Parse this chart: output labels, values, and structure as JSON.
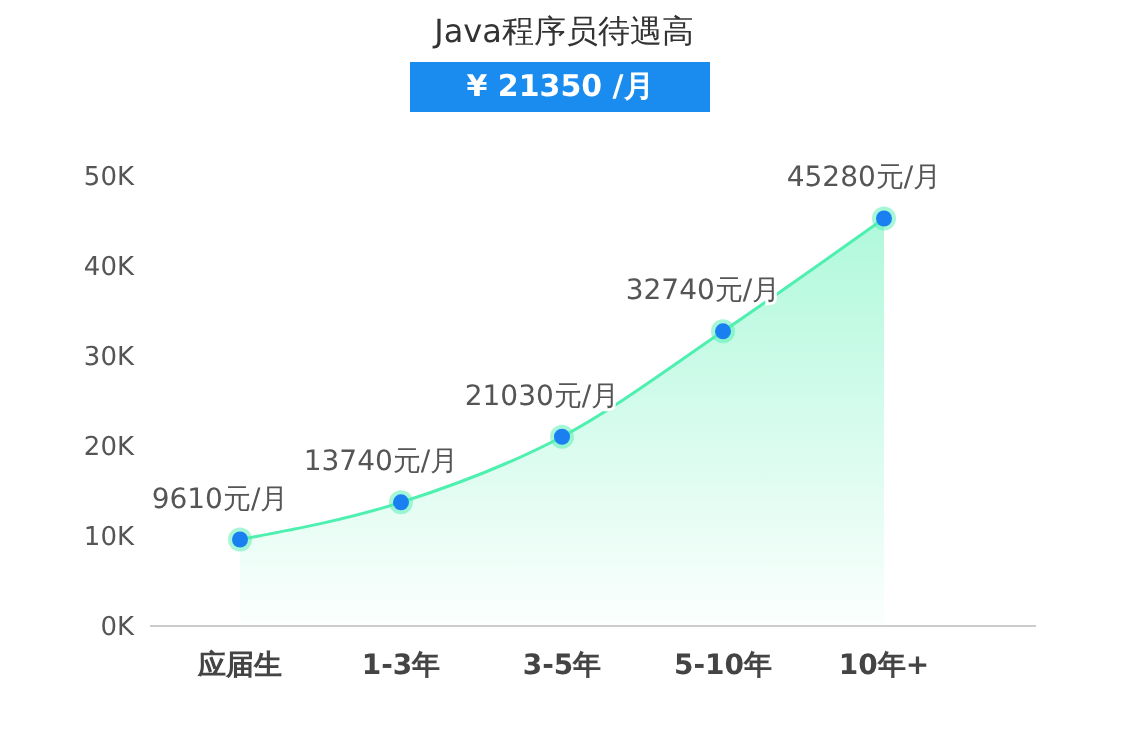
{
  "chart_data": {
    "type": "area",
    "title": "Java程序员待遇高",
    "subtitle": "¥ 21350 /月",
    "categories": [
      "应届生",
      "1-3年",
      "3-5年",
      "5-10年",
      "10年+"
    ],
    "series": [
      {
        "color": "#4ef0b0",
        "values": [
          9610,
          13740,
          21030,
          32740,
          45280
        ],
        "value_labels": [
          "9610元/月",
          "13740元/月",
          "21030元/月",
          "32740元/月",
          "45280元/月"
        ]
      }
    ],
    "ylim": [
      0,
      50000
    ],
    "yticks": [
      {
        "value": 0,
        "label": "0K"
      },
      {
        "value": 10000,
        "label": "10K"
      },
      {
        "value": 20000,
        "label": "20K"
      },
      {
        "value": 30000,
        "label": "30K"
      },
      {
        "value": 40000,
        "label": "40K"
      },
      {
        "value": 50000,
        "label": "50K"
      }
    ],
    "grid": false,
    "legend": false,
    "marker": "circle"
  }
}
